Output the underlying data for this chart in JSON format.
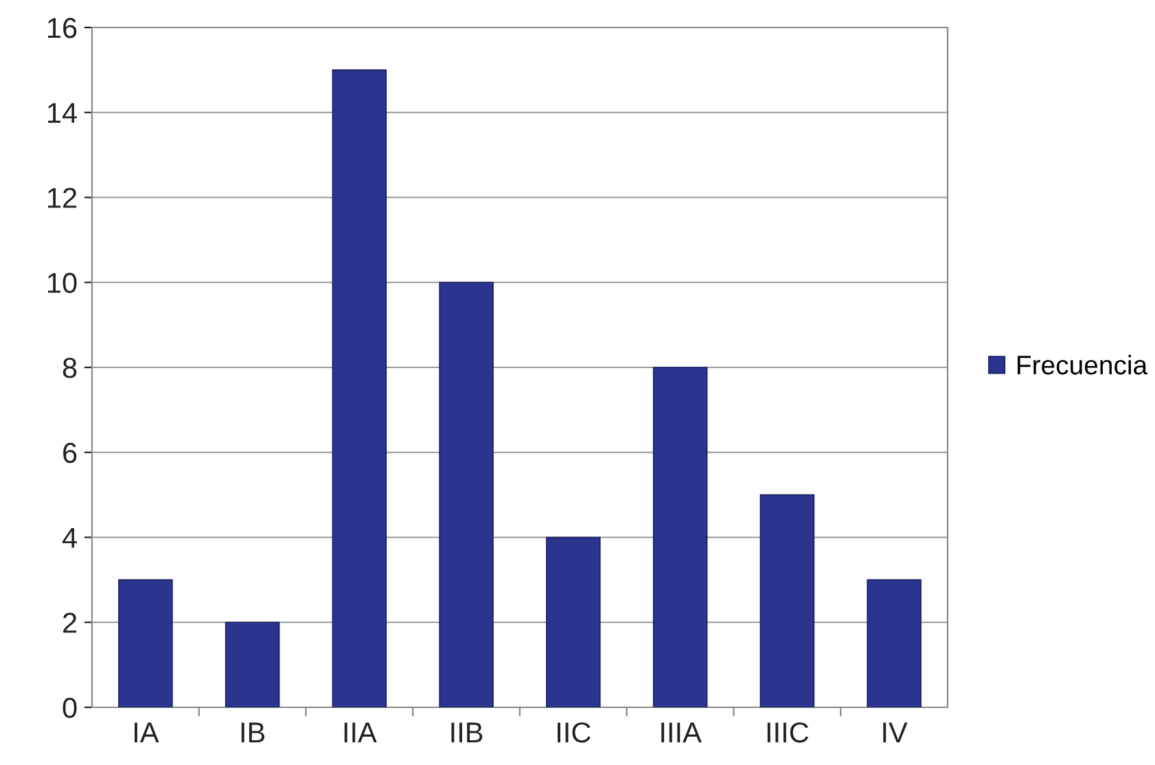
{
  "chart_data": {
    "type": "bar",
    "categories": [
      "IA",
      "IB",
      "IIA",
      "IIB",
      "IIC",
      "IIIA",
      "IIIC",
      "IV"
    ],
    "series": [
      {
        "name": "Frecuencia",
        "color": "#2b3590",
        "values": [
          3,
          2,
          15,
          10,
          4,
          8,
          5,
          3
        ]
      }
    ],
    "ylim": [
      0,
      16
    ],
    "yticks": [
      0,
      2,
      4,
      6,
      8,
      10,
      12,
      14,
      16
    ],
    "grid": "y",
    "legend": "right"
  }
}
